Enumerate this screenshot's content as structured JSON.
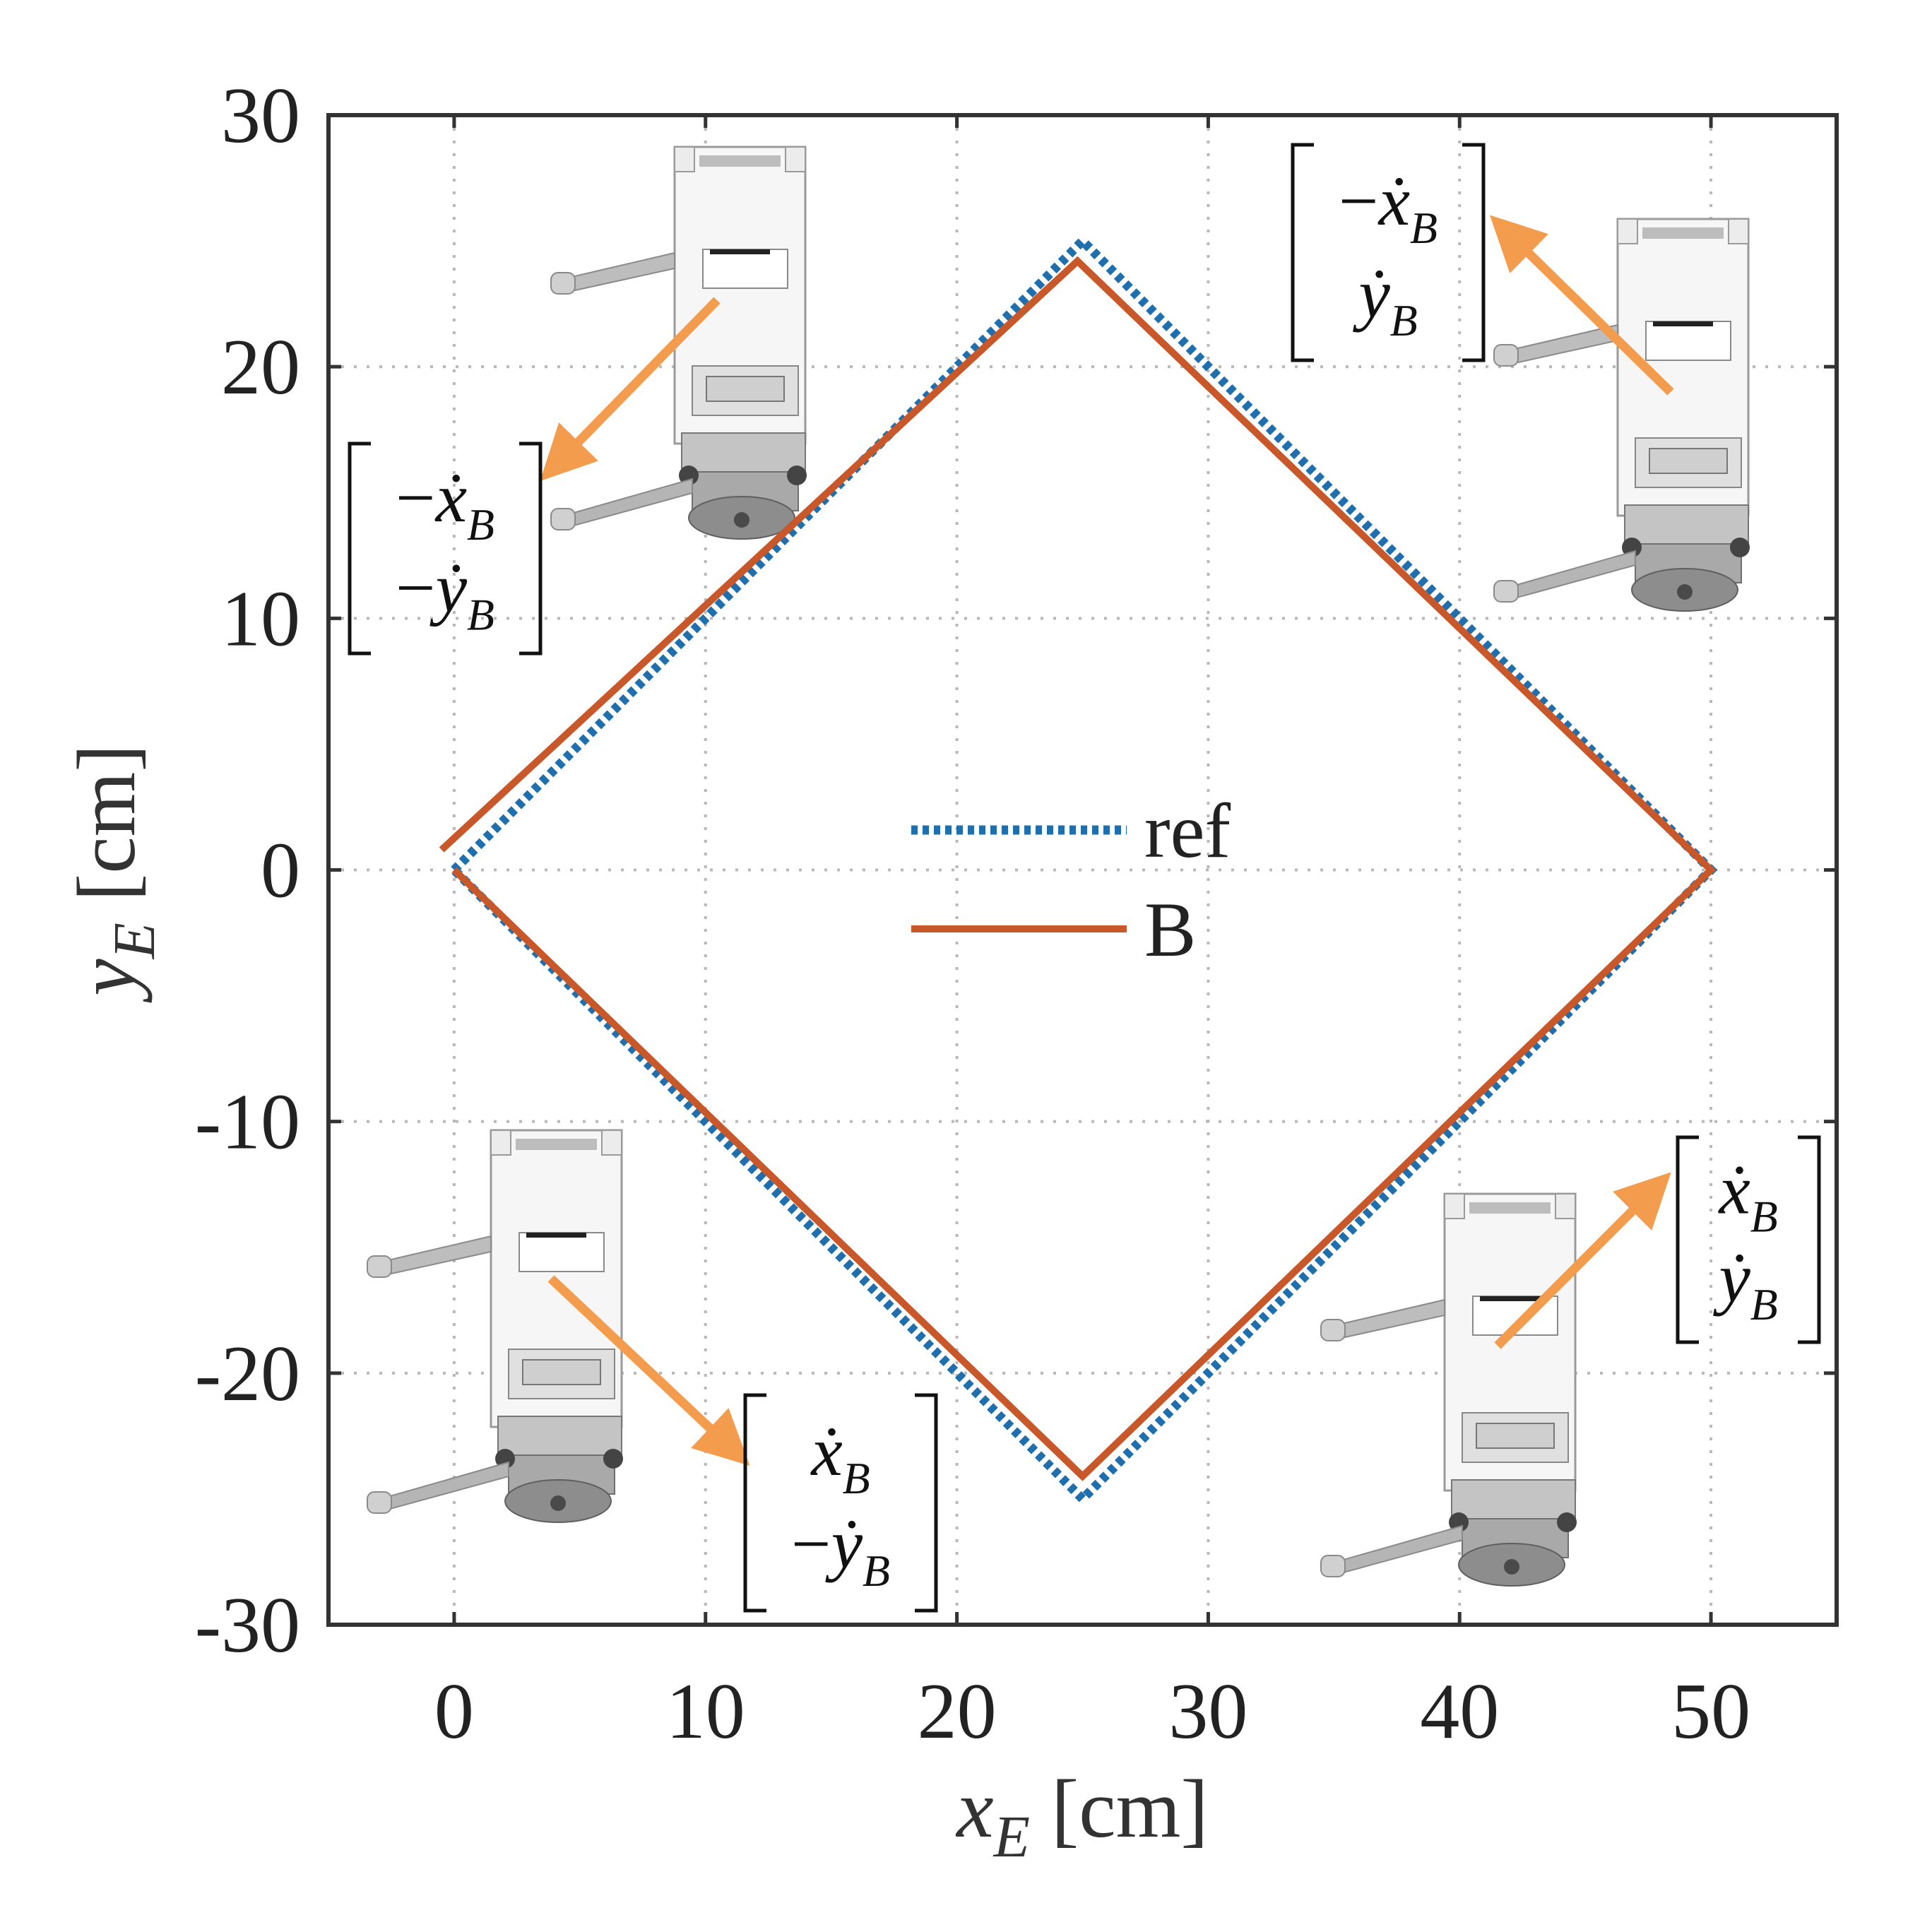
{
  "chart_data": {
    "type": "line",
    "xlabel": "x_E [cm]",
    "ylabel": "y_E [cm]",
    "xlim": [
      -5,
      55
    ],
    "ylim": [
      -30,
      30
    ],
    "xticks": [
      0,
      10,
      20,
      30,
      40,
      50
    ],
    "yticks": [
      30,
      20,
      10,
      0,
      -10,
      -20,
      -30
    ],
    "xtick_labels": [
      "0",
      "10",
      "20",
      "30",
      "40",
      "50"
    ],
    "ytick_labels": [
      "30",
      "20",
      "10",
      "0",
      "-10",
      "-20",
      "-30"
    ],
    "grid": true,
    "legend_position": "center",
    "series": [
      {
        "name": "ref",
        "style": "dotted",
        "color": "#1f6fae",
        "x": [
          0,
          25,
          50,
          25,
          0
        ],
        "y": [
          0,
          25,
          0,
          -25,
          0
        ]
      },
      {
        "name": "B",
        "style": "solid",
        "color": "#c8582a",
        "x": [
          -0.5,
          24.8,
          50,
          25,
          0
        ],
        "y": [
          0.8,
          24.2,
          0,
          -24.1,
          0
        ]
      }
    ],
    "annotations": [
      {
        "position": "top-left",
        "vector": [
          "−ẋ_B",
          "−ẏ_B"
        ],
        "arrow_color": "#f39c4d"
      },
      {
        "position": "top-right",
        "vector": [
          "−ẋ_B",
          "ẏ_B"
        ],
        "arrow_color": "#f39c4d"
      },
      {
        "position": "bottom-left",
        "vector": [
          "ẋ_B",
          "−ẏ_B"
        ],
        "arrow_color": "#f39c4d"
      },
      {
        "position": "bottom-right",
        "vector": [
          "ẋ_B",
          "ẏ_B"
        ],
        "arrow_color": "#f39c4d"
      }
    ]
  }
}
